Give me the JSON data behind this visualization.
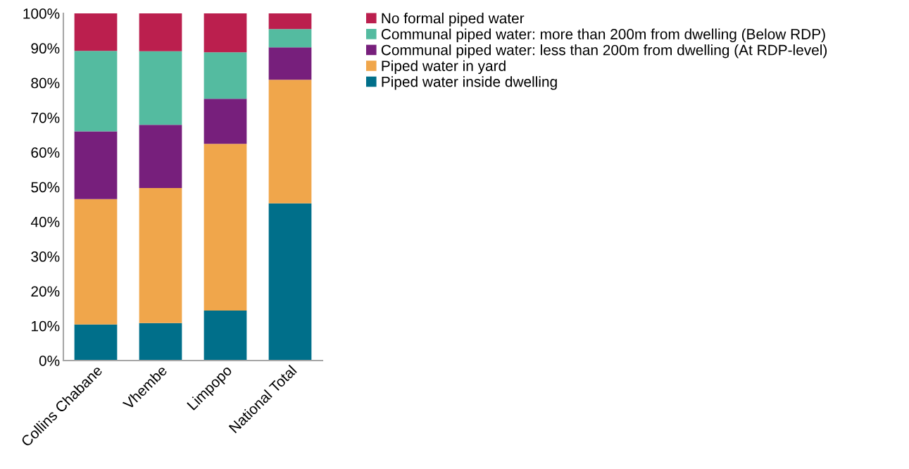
{
  "chart_data": {
    "type": "bar",
    "stacked": true,
    "categories": [
      "Collins Chabane",
      "Vhembe",
      "Limpopo",
      "National Total"
    ],
    "series": [
      {
        "name": "Piped water inside dwelling",
        "color": "#006f8a",
        "values": [
          10.4,
          10.8,
          14.4,
          45.3
        ]
      },
      {
        "name": "Piped water in yard",
        "color": "#f0a64b",
        "values": [
          36.1,
          38.9,
          48.0,
          35.6
        ]
      },
      {
        "name": "Communal piped water: less than 200m from dwelling (At RDP-level)",
        "color": "#771f7c",
        "values": [
          19.5,
          18.2,
          13.0,
          9.3
        ]
      },
      {
        "name": "Communal piped water: more than 200m from dwelling (Below RDP)",
        "color": "#54bba0",
        "values": [
          23.2,
          21.2,
          13.4,
          5.3
        ]
      },
      {
        "name": "No formal piped water",
        "color": "#bb1f4e",
        "values": [
          10.8,
          10.9,
          11.2,
          4.5
        ]
      }
    ],
    "ylim": [
      0,
      100
    ],
    "yticks": [
      {
        "value": 0,
        "label": "0%"
      },
      {
        "value": 10,
        "label": "10%"
      },
      {
        "value": 20,
        "label": "20%"
      },
      {
        "value": 30,
        "label": "30%"
      },
      {
        "value": 40,
        "label": "40%"
      },
      {
        "value": 50,
        "label": "50%"
      },
      {
        "value": 60,
        "label": "60%"
      },
      {
        "value": 70,
        "label": "70%"
      },
      {
        "value": 80,
        "label": "80%"
      },
      {
        "value": 90,
        "label": "90%"
      },
      {
        "value": 100,
        "label": "100%"
      }
    ],
    "grid": false,
    "legend": "top right"
  }
}
